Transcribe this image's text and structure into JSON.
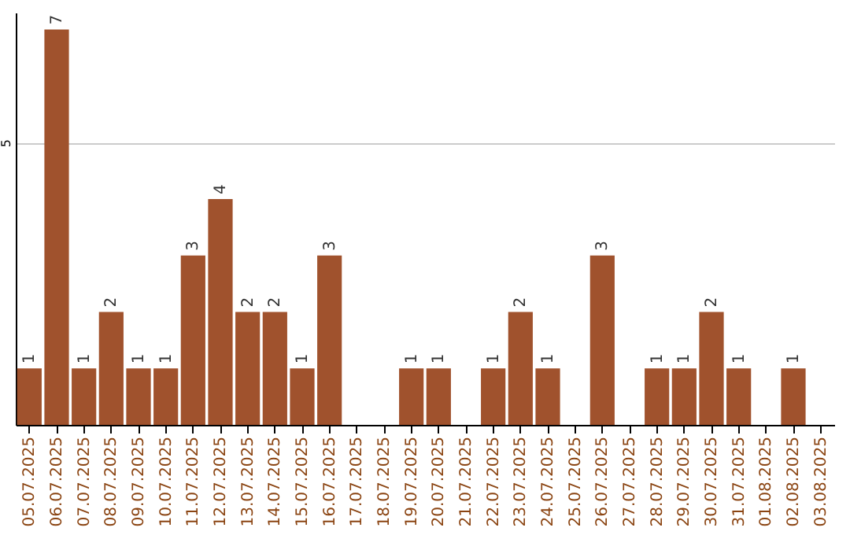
{
  "chart_data": {
    "type": "bar",
    "categories": [
      "05.07.2025",
      "06.07.2025",
      "07.07.2025",
      "08.07.2025",
      "09.07.2025",
      "10.07.2025",
      "11.07.2025",
      "12.07.2025",
      "13.07.2025",
      "14.07.2025",
      "15.07.2025",
      "16.07.2025",
      "17.07.2025",
      "18.07.2025",
      "19.07.2025",
      "20.07.2025",
      "21.07.2025",
      "22.07.2025",
      "23.07.2025",
      "24.07.2025",
      "25.07.2025",
      "26.07.2025",
      "27.07.2025",
      "28.07.2025",
      "29.07.2025",
      "30.07.2025",
      "31.07.2025",
      "01.08.2025",
      "02.08.2025",
      "03.08.2025"
    ],
    "values": [
      1,
      7,
      1,
      2,
      1,
      1,
      3,
      4,
      2,
      2,
      1,
      3,
      0,
      0,
      1,
      1,
      0,
      1,
      2,
      1,
      0,
      3,
      0,
      1,
      1,
      2,
      1,
      0,
      1,
      0
    ],
    "value_labels": [
      "1",
      "7",
      "1",
      "2",
      "1",
      "1",
      "3",
      "4",
      "2",
      "2",
      "1",
      "3",
      null,
      null,
      "1",
      "1",
      null,
      "1",
      "2",
      "1",
      null,
      "3",
      null,
      "1",
      "1",
      "2",
      "1",
      null,
      "1",
      null
    ],
    "color": "#a0522d",
    "ylim": [
      0,
      7.3
    ],
    "yticks": [
      5
    ],
    "grid": "y"
  }
}
